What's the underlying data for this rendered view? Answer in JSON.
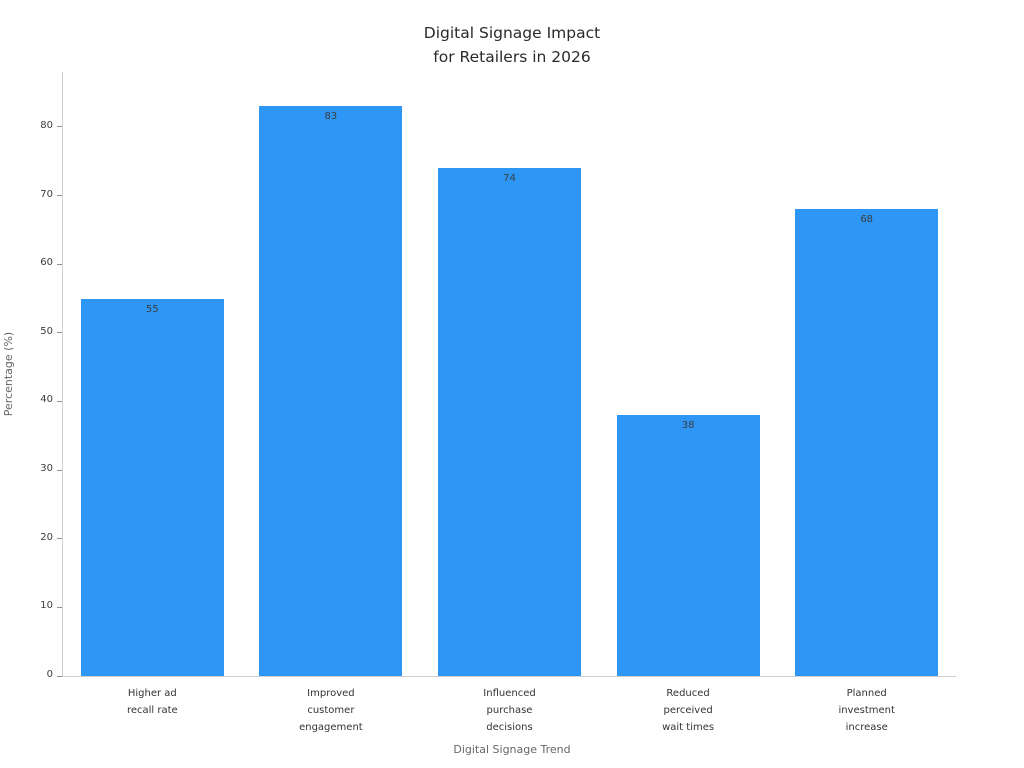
{
  "chart_data": {
    "type": "bar",
    "title": "Digital Signage Impact\nfor Retailers in 2026",
    "title_lines": [
      "Digital Signage Impact",
      "for Retailers in 2026"
    ],
    "xlabel": "Digital Signage Trend",
    "ylabel": "Percentage (%)",
    "categories": [
      "Higher ad recall rate",
      "Improved customer engagement",
      "Influenced purchase decisions",
      "Reduced perceived wait times",
      "Planned investment increase"
    ],
    "category_lines": [
      [
        "Higher ad",
        "recall rate"
      ],
      [
        "Improved",
        "customer",
        "engagement"
      ],
      [
        "Influenced",
        "purchase",
        "decisions"
      ],
      [
        "Reduced",
        "perceived",
        "wait times"
      ],
      [
        "Planned",
        "investment",
        "increase"
      ]
    ],
    "values": [
      55,
      83,
      74,
      38,
      68
    ],
    "ylim": [
      0,
      88
    ],
    "yticks": [
      0,
      10,
      20,
      30,
      40,
      50,
      60,
      70,
      80
    ],
    "bar_width_ratio": 0.8,
    "bar_color": "#2e96f5",
    "value_label_color": "#3d3d3d",
    "grid": false,
    "legend": false
  }
}
